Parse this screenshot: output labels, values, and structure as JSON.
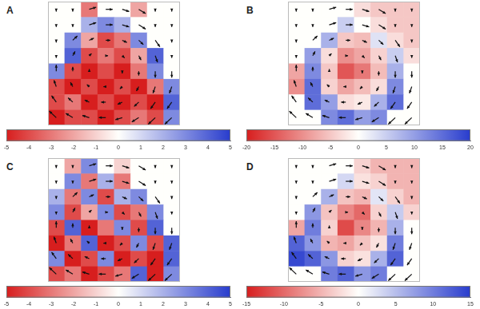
{
  "chart_data": [
    {
      "type": "heatmap",
      "title": "A",
      "xlim": [
        0,
        8
      ],
      "ylim": [
        0,
        8
      ],
      "tick_labels": false,
      "cells": [
        [
          0,
          0,
          -3,
          0,
          0,
          -2,
          0,
          0
        ],
        [
          0,
          0,
          2,
          3,
          2,
          0,
          0,
          0
        ],
        [
          0,
          3,
          -2,
          -4,
          -3,
          3,
          0,
          0
        ],
        [
          0,
          4,
          -4,
          -3,
          -4,
          -2,
          4,
          0
        ],
        [
          3,
          -4,
          -5,
          -4,
          -5,
          -3,
          3,
          0
        ],
        [
          -4,
          -5,
          -4,
          -5,
          -4,
          -5,
          -3,
          3
        ],
        [
          -4,
          -3,
          -5,
          -4,
          -5,
          -4,
          -5,
          4
        ],
        [
          -5,
          -4,
          -4,
          -5,
          -4,
          -3,
          -4,
          3
        ]
      ],
      "vectors": {
        "u": [
          [
            0,
            0,
            3,
            3,
            3,
            3,
            0,
            0
          ],
          [
            0,
            0,
            3,
            3,
            3,
            3,
            0,
            0
          ],
          [
            0,
            2,
            2,
            2,
            2,
            2,
            2,
            0
          ],
          [
            0,
            1,
            1,
            1,
            1,
            1,
            1,
            0
          ],
          [
            0,
            0,
            0,
            0,
            0,
            0,
            0,
            0
          ],
          [
            -1,
            -1,
            -1,
            -1,
            -1,
            -1,
            -1,
            -1
          ],
          [
            -2,
            -2,
            -2,
            -2,
            -2,
            -2,
            -2,
            -2
          ],
          [
            -3,
            -3,
            -3,
            -3,
            -3,
            -3,
            -3,
            -3
          ]
        ],
        "v": [
          [
            -1,
            -1,
            1,
            0,
            -1,
            -2,
            -1,
            -1
          ],
          [
            -1,
            -1,
            1,
            0,
            -1,
            -2,
            -1,
            -1
          ],
          [
            -1,
            2,
            1,
            0,
            -1,
            -2,
            -3,
            -1
          ],
          [
            -1,
            2,
            1,
            0,
            -1,
            -2,
            -3,
            -1
          ],
          [
            3,
            2,
            1,
            0,
            -1,
            -2,
            -3,
            -3
          ],
          [
            3,
            2,
            1,
            0,
            -1,
            -2,
            -3,
            -3
          ],
          [
            3,
            2,
            1,
            0,
            -1,
            -2,
            -3,
            -3
          ],
          [
            3,
            2,
            1,
            0,
            -1,
            -2,
            -3,
            -3
          ]
        ]
      },
      "color_range": [
        -5,
        5
      ],
      "color_ticks": [
        -5,
        -4,
        -3,
        -2,
        -1,
        0,
        1,
        2,
        3,
        4,
        5
      ]
    },
    {
      "type": "heatmap",
      "title": "B",
      "xlim": [
        0,
        8
      ],
      "ylim": [
        0,
        8
      ],
      "tick_labels": false,
      "cells": [
        [
          0,
          0,
          0,
          0,
          -3,
          -5,
          -5,
          -5
        ],
        [
          0,
          0,
          0,
          5,
          0,
          -3,
          -5,
          -5
        ],
        [
          0,
          0,
          8,
          -5,
          -6,
          3,
          -3,
          -5
        ],
        [
          0,
          10,
          -3,
          -10,
          -8,
          -4,
          5,
          -3
        ],
        [
          -8,
          12,
          -5,
          -15,
          -12,
          -6,
          8,
          0
        ],
        [
          -10,
          15,
          -4,
          -8,
          -6,
          -3,
          12,
          0
        ],
        [
          0,
          15,
          10,
          -3,
          -2,
          8,
          15,
          0
        ],
        [
          0,
          0,
          12,
          15,
          10,
          12,
          0,
          0
        ]
      ],
      "vectors": {
        "u": [
          [
            0,
            0,
            3,
            3,
            3,
            3,
            0,
            0
          ],
          [
            0,
            0,
            3,
            3,
            3,
            3,
            0,
            0
          ],
          [
            0,
            2,
            2,
            2,
            2,
            2,
            2,
            0
          ],
          [
            0,
            1,
            1,
            1,
            1,
            1,
            1,
            0
          ],
          [
            0,
            0,
            0,
            0,
            0,
            0,
            0,
            0
          ],
          [
            -1,
            -1,
            -1,
            -1,
            -1,
            -1,
            -1,
            -1
          ],
          [
            -2,
            -2,
            -2,
            -2,
            -2,
            -2,
            -2,
            -2
          ],
          [
            -3,
            -3,
            -3,
            -3,
            -3,
            -3,
            -3,
            -3
          ]
        ],
        "v": [
          [
            -1,
            -1,
            1,
            0,
            -1,
            -2,
            -1,
            -1
          ],
          [
            -1,
            -1,
            1,
            0,
            -1,
            -2,
            -1,
            -1
          ],
          [
            -1,
            2,
            1,
            0,
            -1,
            -2,
            -3,
            -1
          ],
          [
            -1,
            2,
            1,
            0,
            -1,
            -2,
            -3,
            -1
          ],
          [
            3,
            2,
            1,
            0,
            -1,
            -2,
            -3,
            -3
          ],
          [
            3,
            2,
            1,
            0,
            -1,
            -2,
            -3,
            -3
          ],
          [
            3,
            2,
            1,
            0,
            -1,
            -2,
            -3,
            -3
          ],
          [
            3,
            2,
            1,
            0,
            -1,
            -2,
            -3,
            -3
          ]
        ]
      },
      "color_range": [
        -20,
        20
      ],
      "color_ticks": [
        -20,
        -15,
        -10,
        -5,
        0,
        5,
        10,
        15,
        20
      ]
    },
    {
      "type": "heatmap",
      "title": "C",
      "xlim": [
        0,
        8
      ],
      "ylim": [
        0,
        8
      ],
      "tick_labels": false,
      "cells": [
        [
          0,
          -2,
          3,
          0,
          -1,
          0,
          0,
          0
        ],
        [
          0,
          3,
          -3,
          2,
          -3,
          0,
          0,
          0
        ],
        [
          2,
          -3,
          3,
          -4,
          2,
          3,
          0,
          0
        ],
        [
          3,
          -4,
          -2,
          3,
          -4,
          -3,
          3,
          0
        ],
        [
          -4,
          4,
          -5,
          -3,
          3,
          -4,
          4,
          0
        ],
        [
          -5,
          -3,
          4,
          -5,
          -4,
          3,
          -4,
          4
        ],
        [
          3,
          -5,
          -4,
          3,
          -5,
          -4,
          -5,
          4
        ],
        [
          -4,
          -3,
          -5,
          -4,
          -3,
          4,
          -5,
          3
        ]
      ],
      "vectors": {
        "u": [
          [
            0,
            0,
            3,
            3,
            3,
            3,
            0,
            0
          ],
          [
            0,
            0,
            3,
            3,
            3,
            3,
            0,
            0
          ],
          [
            0,
            2,
            2,
            2,
            2,
            2,
            2,
            0
          ],
          [
            0,
            1,
            1,
            1,
            1,
            1,
            1,
            0
          ],
          [
            0,
            0,
            0,
            0,
            0,
            0,
            0,
            0
          ],
          [
            -1,
            -1,
            -1,
            -1,
            -1,
            -1,
            -1,
            -1
          ],
          [
            -2,
            -2,
            -2,
            -2,
            -2,
            -2,
            -2,
            -2
          ],
          [
            -3,
            -3,
            -3,
            -3,
            -3,
            -3,
            -3,
            -3
          ]
        ],
        "v": [
          [
            -1,
            -1,
            1,
            0,
            -1,
            -2,
            -1,
            -1
          ],
          [
            -1,
            -1,
            1,
            0,
            -1,
            -2,
            -1,
            -1
          ],
          [
            -1,
            2,
            1,
            0,
            -1,
            -2,
            -3,
            -1
          ],
          [
            -1,
            2,
            1,
            0,
            -1,
            -2,
            -3,
            -1
          ],
          [
            3,
            2,
            1,
            0,
            -1,
            -2,
            -3,
            -3
          ],
          [
            3,
            2,
            1,
            0,
            -1,
            -2,
            -3,
            -3
          ],
          [
            3,
            2,
            1,
            0,
            -1,
            -2,
            -3,
            -3
          ],
          [
            3,
            2,
            1,
            0,
            -1,
            -2,
            -3,
            -3
          ]
        ]
      },
      "color_range": [
        -5,
        5
      ],
      "color_ticks": [
        -5,
        -4,
        -3,
        -2,
        -1,
        0,
        1,
        2,
        3,
        4,
        5
      ]
    },
    {
      "type": "heatmap",
      "title": "D",
      "xlim": [
        0,
        8
      ],
      "ylim": [
        0,
        8
      ],
      "tick_labels": false,
      "cells": [
        [
          0,
          0,
          0,
          0,
          -3,
          -5,
          -5,
          -5
        ],
        [
          0,
          0,
          0,
          3,
          -2,
          -3,
          -5,
          -5
        ],
        [
          0,
          0,
          6,
          -4,
          -5,
          2,
          -3,
          -5
        ],
        [
          0,
          8,
          -4,
          -8,
          -10,
          -3,
          4,
          -3
        ],
        [
          -6,
          10,
          -3,
          -12,
          -8,
          -5,
          6,
          0
        ],
        [
          12,
          8,
          -5,
          -6,
          -4,
          -2,
          10,
          0
        ],
        [
          14,
          12,
          8,
          -3,
          -2,
          6,
          12,
          0
        ],
        [
          0,
          0,
          10,
          12,
          8,
          10,
          0,
          0
        ]
      ],
      "vectors": {
        "u": [
          [
            0,
            0,
            3,
            3,
            3,
            3,
            0,
            0
          ],
          [
            0,
            0,
            3,
            3,
            3,
            3,
            0,
            0
          ],
          [
            0,
            2,
            2,
            2,
            2,
            2,
            2,
            0
          ],
          [
            0,
            1,
            1,
            1,
            1,
            1,
            1,
            0
          ],
          [
            0,
            0,
            0,
            0,
            0,
            0,
            0,
            0
          ],
          [
            -1,
            -1,
            -1,
            -1,
            -1,
            -1,
            -1,
            -1
          ],
          [
            -2,
            -2,
            -2,
            -2,
            -2,
            -2,
            -2,
            -2
          ],
          [
            -3,
            -3,
            -3,
            -3,
            -3,
            -3,
            -3,
            -3
          ]
        ],
        "v": [
          [
            -1,
            -1,
            1,
            0,
            -1,
            -2,
            -1,
            -1
          ],
          [
            -1,
            -1,
            1,
            0,
            -1,
            -2,
            -1,
            -1
          ],
          [
            -1,
            2,
            1,
            0,
            -1,
            -2,
            -3,
            -1
          ],
          [
            -1,
            2,
            1,
            0,
            -1,
            -2,
            -3,
            -1
          ],
          [
            3,
            2,
            1,
            0,
            -1,
            -2,
            -3,
            -3
          ],
          [
            3,
            2,
            1,
            0,
            -1,
            -2,
            -3,
            -3
          ],
          [
            3,
            2,
            1,
            0,
            -1,
            -2,
            -3,
            -3
          ],
          [
            3,
            2,
            1,
            0,
            -1,
            -2,
            -3,
            -3
          ]
        ]
      },
      "color_range": [
        -15,
        15
      ],
      "color_ticks": [
        -15,
        -10,
        -5,
        0,
        5,
        10,
        15
      ]
    }
  ]
}
